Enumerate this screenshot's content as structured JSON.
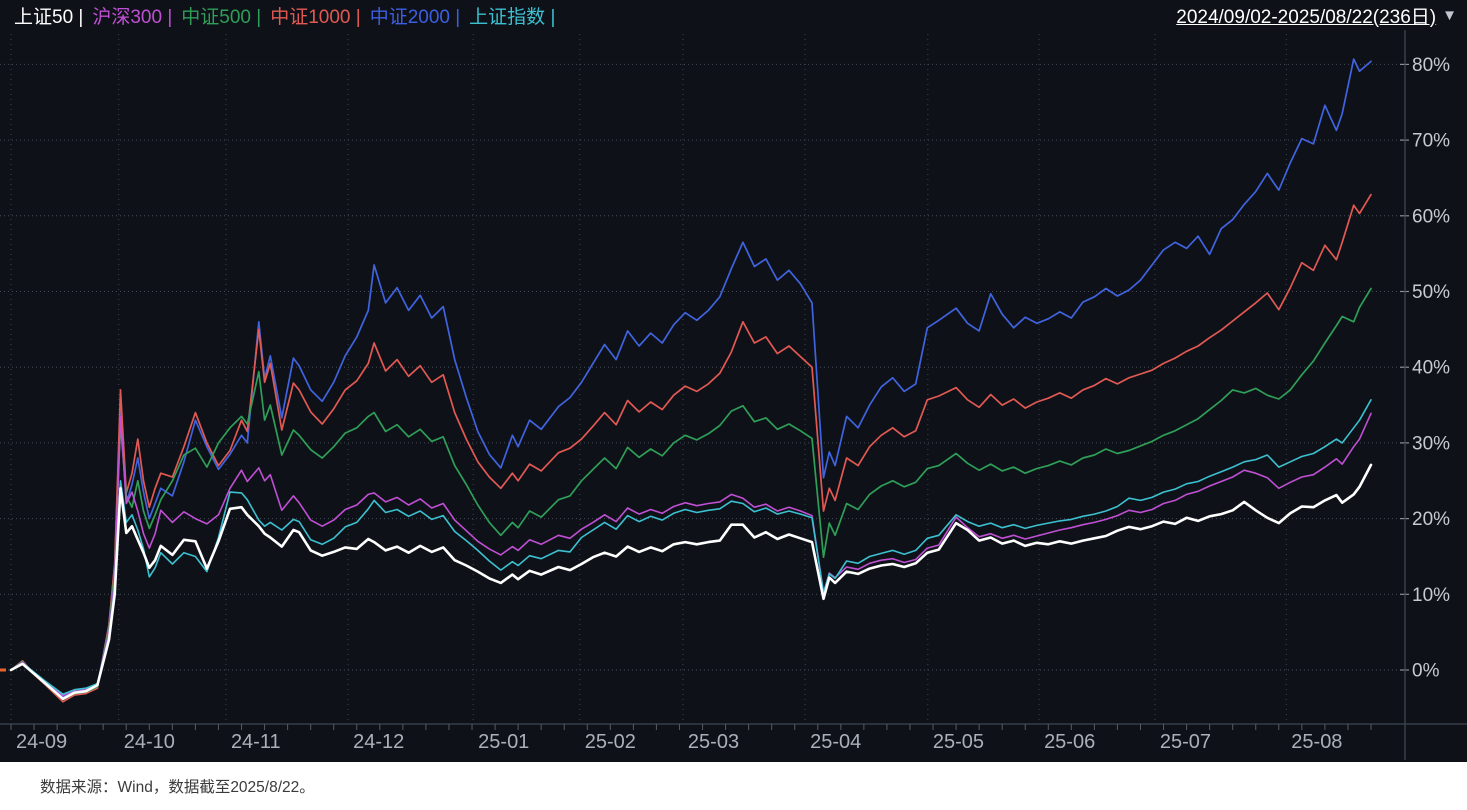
{
  "header": {
    "legend": [
      {
        "label": "上证50",
        "color": "#ffffff"
      },
      {
        "label": "沪深300",
        "color": "#c04fd4"
      },
      {
        "label": "中证500",
        "color": "#2f9e58"
      },
      {
        "label": "中证1000",
        "color": "#e25953"
      },
      {
        "label": "中证2000",
        "color": "#3e5ee2"
      },
      {
        "label": "上证指数",
        "color": "#3cc0d0"
      }
    ],
    "separator": "|",
    "date_range": "2024/09/02-2025/08/22(236日)",
    "dropdown_icon": "▼"
  },
  "footer": {
    "source_note": "数据来源：Wind，数据截至2025/8/22。"
  },
  "colors": {
    "background": "#0e1218",
    "grid": "#464c57",
    "grid_vertical": "#3d434d",
    "axis_line": "#3f4651",
    "tick": "#555b66",
    "y_label": "#c7cad0",
    "x_label": "#aab0ba",
    "origin_marker": "#e8622d"
  },
  "chart_data": {
    "type": "line",
    "title": "",
    "xlabel": "",
    "ylabel": "",
    "x_unit": "trading_day_index_from_2024-09-02",
    "total_days": 236,
    "y_axis": {
      "min": 0,
      "max": 80,
      "tick_values": [
        0,
        10,
        20,
        30,
        40,
        50,
        60,
        70,
        80
      ],
      "tick_labels": [
        "0%",
        "10%",
        "20%",
        "30%",
        "40%",
        "50%",
        "60%",
        "70%",
        "80%"
      ],
      "position": "right"
    },
    "x_axis": {
      "months": [
        {
          "label": "24-09",
          "day": 0
        },
        {
          "label": "24-10",
          "day": 18.7
        },
        {
          "label": "24-11",
          "day": 37.3
        },
        {
          "label": "24-12",
          "day": 58.5
        },
        {
          "label": "25-01",
          "day": 80.2
        },
        {
          "label": "25-02",
          "day": 98.7
        },
        {
          "label": "25-03",
          "day": 116.6
        },
        {
          "label": "25-04",
          "day": 137.8
        },
        {
          "label": "25-05",
          "day": 159.1
        },
        {
          "label": "25-06",
          "day": 178.4
        },
        {
          "label": "25-07",
          "day": 198.5
        },
        {
          "label": "25-08",
          "day": 221.3
        }
      ]
    },
    "grid": true,
    "legend_position": "top-left",
    "days": [
      0,
      2,
      4,
      6,
      9,
      11,
      13,
      15,
      17,
      18,
      19,
      20,
      21,
      22,
      23,
      24,
      25,
      26,
      28,
      30,
      32,
      34,
      36,
      38,
      40,
      41,
      43,
      44,
      45,
      47,
      49,
      50,
      52,
      54,
      56,
      58,
      60,
      62,
      63,
      65,
      67,
      69,
      71,
      73,
      75,
      77,
      79,
      81,
      83,
      85,
      87,
      88,
      90,
      92,
      95,
      97,
      99,
      101,
      103,
      105,
      107,
      109,
      111,
      113,
      115,
      117,
      119,
      121,
      123,
      125,
      127,
      129,
      131,
      133,
      135,
      137,
      139,
      141,
      142,
      143,
      145,
      147,
      149,
      151,
      153,
      155,
      157,
      159,
      161,
      164,
      166,
      168,
      170,
      172,
      174,
      176,
      178,
      180,
      182,
      184,
      186,
      188,
      190,
      192,
      194,
      196,
      198,
      200,
      202,
      204,
      206,
      208,
      210,
      212,
      214,
      216,
      218,
      220,
      222,
      224,
      226,
      228,
      230,
      231,
      233,
      234,
      236
    ],
    "series": [
      {
        "name": "中证2000",
        "color": "#4063e0",
        "width": 1.7,
        "values": [
          0,
          1.2,
          -0.5,
          -1.8,
          -3.6,
          -2.9,
          -2.7,
          -2.1,
          6,
          14,
          34.5,
          22,
          24.5,
          28,
          23.5,
          20,
          22,
          24,
          23,
          27.5,
          33,
          29.5,
          26.5,
          28.5,
          31,
          30,
          46,
          38.5,
          41.5,
          33.3,
          41.2,
          40.2,
          37,
          35.5,
          38,
          41.5,
          44,
          47.5,
          53.5,
          48.5,
          50.5,
          47.5,
          49.5,
          46.5,
          48,
          41,
          36,
          31.5,
          28.5,
          26.7,
          31,
          29.5,
          33,
          31.8,
          34.8,
          36,
          38,
          40.5,
          43,
          41,
          44.8,
          42.8,
          44.5,
          43.2,
          45.6,
          47.2,
          46.2,
          47.5,
          49.3,
          53,
          56.5,
          53.3,
          54.3,
          51.5,
          52.8,
          51,
          48.5,
          25.4,
          28.8,
          27,
          33.5,
          32,
          35,
          37.4,
          38.6,
          36.8,
          37.8,
          45.2,
          46.2,
          47.8,
          45.8,
          44.8,
          49.7,
          47,
          45.2,
          46.6,
          45.8,
          46.4,
          47.3,
          46.5,
          48.6,
          49.3,
          50.4,
          49.4,
          50.2,
          51.5,
          53.5,
          55.5,
          56.5,
          55.7,
          57.3,
          54.9,
          58.3,
          59.5,
          61.5,
          63.2,
          65.6,
          63.4,
          67,
          70.2,
          69.5,
          74.6,
          71.3,
          73.5,
          80.7,
          79.1,
          80.4
        ]
      },
      {
        "name": "中证1000",
        "color": "#e25953",
        "width": 1.7,
        "values": [
          0,
          1.2,
          -0.6,
          -2,
          -4.2,
          -3.3,
          -3.1,
          -2.4,
          6,
          14,
          37,
          23.4,
          26,
          30.5,
          25,
          21.5,
          24,
          26,
          25.5,
          29.5,
          34,
          30,
          27,
          29,
          33,
          31.5,
          45,
          38,
          40.5,
          31.7,
          37.9,
          37,
          34.1,
          32.5,
          34.5,
          37,
          38.2,
          40.5,
          43.2,
          39.5,
          41,
          38.8,
          40.2,
          38,
          39,
          34,
          30.5,
          27.5,
          25.5,
          24,
          26,
          25,
          27.2,
          26.3,
          28.7,
          29.3,
          30.5,
          32.2,
          34,
          32.4,
          35.6,
          34.1,
          35.4,
          34.4,
          36.3,
          37.5,
          36.8,
          37.8,
          39.2,
          42,
          46,
          43.2,
          44,
          41.8,
          42.8,
          41.4,
          40,
          21,
          24,
          22.4,
          28,
          27,
          29.5,
          31,
          32,
          30.8,
          31.6,
          35.7,
          36.2,
          37.3,
          35.7,
          34.7,
          36.4,
          35,
          35.8,
          34.6,
          35.4,
          35.9,
          36.6,
          35.9,
          37,
          37.6,
          38.5,
          37.8,
          38.6,
          39.1,
          39.6,
          40.5,
          41.2,
          42.1,
          42.8,
          43.9,
          44.9,
          46.1,
          47.3,
          48.5,
          49.8,
          47.6,
          50.5,
          53.8,
          52.8,
          56.1,
          54.2,
          56.5,
          61.4,
          60.3,
          62.8
        ]
      },
      {
        "name": "中证500",
        "color": "#2f9e58",
        "width": 1.7,
        "values": [
          0,
          1.1,
          -0.5,
          -1.9,
          -3.9,
          -3.1,
          -2.9,
          -2.2,
          5.5,
          13,
          32.5,
          23,
          21.5,
          25,
          21,
          18.7,
          20.5,
          22.5,
          25,
          28.4,
          29.3,
          26.8,
          30,
          32,
          33.5,
          32.5,
          39.4,
          33,
          35,
          28.4,
          31.7,
          31,
          29.1,
          28,
          29.5,
          31.3,
          32,
          33.5,
          34,
          31.5,
          32.4,
          30.8,
          31.8,
          30.2,
          30.8,
          27,
          24.5,
          21.8,
          19.5,
          17.8,
          19.5,
          18.8,
          21,
          20.2,
          22.5,
          23,
          25,
          26.5,
          28,
          26.6,
          29.4,
          28.1,
          29.2,
          28.3,
          30,
          31,
          30.4,
          31.2,
          32.3,
          34.2,
          34.9,
          32.8,
          33.3,
          31.8,
          32.5,
          31.6,
          30.6,
          14.9,
          19.4,
          17.8,
          22,
          21.2,
          23.2,
          24.3,
          25,
          24.2,
          24.8,
          26.6,
          27,
          28.6,
          27.3,
          26.4,
          27.2,
          26.3,
          26.8,
          26,
          26.6,
          27,
          27.6,
          27.1,
          28,
          28.4,
          29.2,
          28.6,
          29,
          29.6,
          30.2,
          31,
          31.6,
          32.4,
          33.2,
          34.4,
          35.6,
          37,
          36.6,
          37.2,
          36.3,
          35.8,
          37,
          39,
          40.8,
          43.2,
          45.5,
          46.7,
          46,
          47.9,
          50.4
        ]
      },
      {
        "name": "沪深300",
        "color": "#c04fd4",
        "width": 1.6,
        "values": [
          0,
          1,
          -0.4,
          -1.6,
          -3.4,
          -2.7,
          -2.5,
          -1.9,
          5,
          12,
          33.5,
          22,
          23.5,
          21,
          18,
          16.1,
          18,
          21.1,
          19.5,
          20.9,
          20,
          19.3,
          20.5,
          24,
          26.4,
          24.9,
          26.7,
          25,
          25.8,
          21.1,
          23,
          22.1,
          19.8,
          19,
          19.8,
          21.2,
          21.8,
          23.2,
          23.4,
          22.2,
          22.8,
          21.8,
          22.6,
          21.4,
          22,
          19.8,
          18.4,
          17,
          16,
          15.2,
          16.3,
          15.8,
          17.2,
          16.6,
          17.8,
          17.4,
          18.6,
          19.5,
          20.5,
          19.6,
          21.4,
          20.6,
          21.2,
          20.7,
          21.6,
          22.1,
          21.7,
          22,
          22.2,
          23.2,
          22.7,
          21.5,
          21.9,
          21,
          21.5,
          21,
          20.4,
          10.2,
          12.8,
          12.2,
          13.6,
          13.3,
          14.1,
          14.5,
          14.7,
          14.2,
          14.6,
          16.1,
          16.5,
          20.2,
          18.8,
          17.6,
          18,
          17.4,
          17.8,
          17.3,
          17.7,
          18.1,
          18.5,
          18.8,
          19.2,
          19.5,
          19.9,
          20.4,
          21.1,
          20.8,
          21.2,
          22,
          22.4,
          23.2,
          23.6,
          24.3,
          24.9,
          25.5,
          26.4,
          26,
          25.4,
          24,
          24.8,
          25.5,
          25.8,
          26.8,
          27.9,
          27.2,
          29.5,
          30.5,
          33.9
        ]
      },
      {
        "name": "上证指数",
        "color": "#3cc0d0",
        "width": 1.6,
        "values": [
          0,
          0.9,
          -0.3,
          -1.5,
          -3.2,
          -2.6,
          -2.4,
          -1.8,
          4.5,
          11,
          25,
          19.5,
          20.5,
          18.5,
          16,
          12.3,
          13.5,
          15.5,
          14,
          15.5,
          15,
          13,
          17.5,
          23.5,
          23.4,
          22.5,
          19.8,
          19,
          19.5,
          18.5,
          19.9,
          19.6,
          17.2,
          16.6,
          17.4,
          18.9,
          19.5,
          21.3,
          22.4,
          20.8,
          21.2,
          20.3,
          21,
          19.9,
          20.4,
          18.3,
          17.1,
          15.8,
          14.4,
          13.2,
          14.3,
          13.8,
          15.1,
          14.7,
          15.8,
          15.6,
          17.5,
          18.5,
          19.5,
          18.6,
          20.4,
          19.6,
          20.3,
          19.8,
          20.7,
          21.2,
          20.8,
          21.1,
          21.3,
          22.3,
          22,
          20.9,
          21.4,
          20.6,
          21,
          20.6,
          20.1,
          10.2,
          12.7,
          12.1,
          14.4,
          14.1,
          15,
          15.4,
          15.8,
          15.3,
          15.8,
          17.4,
          17.8,
          20.5,
          19.6,
          19,
          19.4,
          18.8,
          19.2,
          18.7,
          19.1,
          19.4,
          19.7,
          19.9,
          20.3,
          20.6,
          21,
          21.6,
          22.7,
          22.4,
          22.8,
          23.5,
          23.9,
          24.6,
          24.9,
          25.6,
          26.2,
          26.8,
          27.5,
          27.8,
          28.4,
          26.8,
          27.5,
          28.2,
          28.6,
          29.5,
          30.5,
          30,
          32,
          33,
          35.7
        ]
      },
      {
        "name": "上证50",
        "color": "#ffffff",
        "width": 2.6,
        "values": [
          0,
          0.8,
          -0.5,
          -1.8,
          -3.8,
          -3,
          -2.8,
          -2,
          4,
          10,
          24,
          18.1,
          19,
          17.2,
          15.5,
          13.5,
          14.5,
          16.4,
          15.2,
          17.2,
          17,
          13.4,
          17,
          21.3,
          21.5,
          20.5,
          19,
          18,
          17.5,
          16.3,
          18.5,
          18.2,
          15.8,
          15.1,
          15.6,
          16.2,
          16,
          17.3,
          16.9,
          15.8,
          16.3,
          15.5,
          16.4,
          15.6,
          16.2,
          14.5,
          13.8,
          13,
          12.1,
          11.5,
          12.6,
          12,
          13.1,
          12.6,
          13.6,
          13.2,
          14,
          14.9,
          15.5,
          15,
          16.3,
          15.6,
          16.2,
          15.7,
          16.6,
          16.9,
          16.6,
          16.9,
          17.1,
          19.2,
          19.2,
          17.5,
          18.2,
          17.3,
          17.9,
          17.4,
          16.9,
          9.4,
          12.2,
          11.5,
          13,
          12.7,
          13.4,
          13.8,
          14,
          13.6,
          14.1,
          15.5,
          15.9,
          19.4,
          18.5,
          17.1,
          17.5,
          16.7,
          17.1,
          16.4,
          16.8,
          16.6,
          17,
          16.7,
          17.1,
          17.4,
          17.7,
          18.4,
          18.9,
          18.6,
          19,
          19.6,
          19.3,
          20.1,
          19.7,
          20.3,
          20.6,
          21.1,
          22.2,
          21.1,
          20.1,
          19.4,
          20.7,
          21.6,
          21.5,
          22.4,
          23.1,
          22.1,
          23.2,
          24.2,
          27.1
        ]
      }
    ]
  }
}
